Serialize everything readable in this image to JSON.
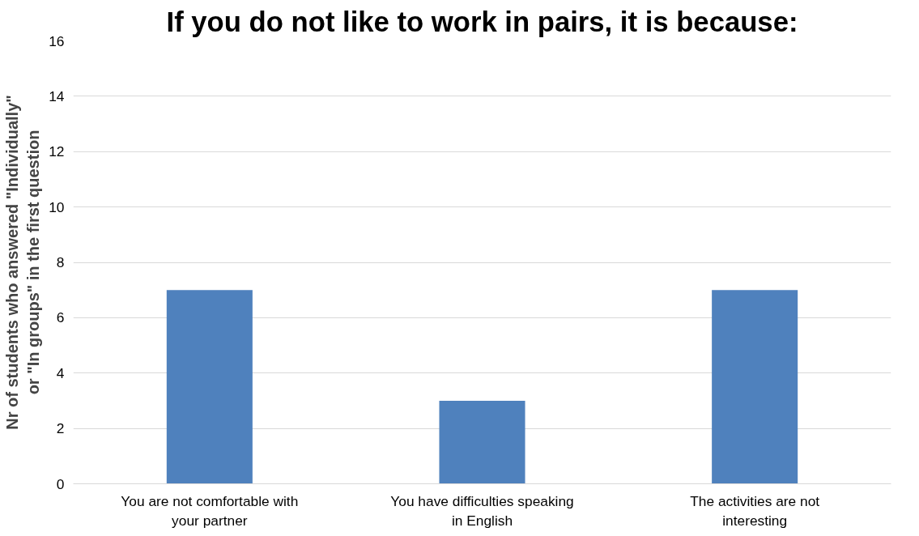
{
  "chart_data": {
    "type": "bar",
    "title": "If you do not like to work in pairs, it is because:",
    "ylabel": "Nr of students who answered \"Individually\" or \"In groups\" in the first question",
    "categories": [
      "You are not comfortable with your partner",
      "You have difficulties speaking in English",
      "The activities are not interesting"
    ],
    "values": [
      7,
      3,
      7
    ],
    "color": "#4f81bd",
    "ylim": [
      0,
      16
    ],
    "yticks": [
      0,
      2,
      4,
      6,
      8,
      10,
      12,
      14,
      16
    ],
    "grid": "y"
  }
}
